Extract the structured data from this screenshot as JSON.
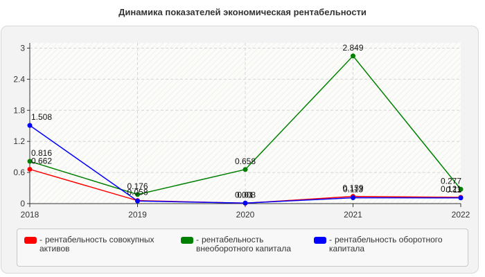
{
  "chart_data": {
    "type": "line",
    "title": "Динамика показателей экономическая рентабельности",
    "categories": [
      "2018",
      "2019",
      "2020",
      "2021",
      "2022"
    ],
    "yticks": [
      "0",
      "0.6",
      "1.2",
      "1.8",
      "2.4",
      "3"
    ],
    "ylim": [
      0,
      3.1
    ],
    "grid": true,
    "legend_position": "bottom",
    "series": [
      {
        "name": "рентабельность совокупных активов",
        "color": "#ff0000",
        "values": [
          0.662,
          0.058,
          0.008,
          0.139,
          0.121
        ],
        "labels": [
          "0.662",
          "0.058",
          "0.008",
          "0.139",
          "0.121"
        ]
      },
      {
        "name": "рентабельность внеоборотного капитала",
        "color": "#008000",
        "values": [
          0.816,
          0.176,
          0.658,
          2.849,
          0.277
        ],
        "labels": [
          "0.816",
          "0.176",
          "0.658",
          "2.849",
          "0.277"
        ]
      },
      {
        "name": "рентабельность оборотного капитала",
        "color": "#0000ff",
        "values": [
          1.508,
          0.05,
          0.01,
          0.113,
          0.11
        ],
        "labels": [
          "1.508",
          "",
          "0.01",
          "0.113",
          "0.11"
        ]
      }
    ]
  }
}
